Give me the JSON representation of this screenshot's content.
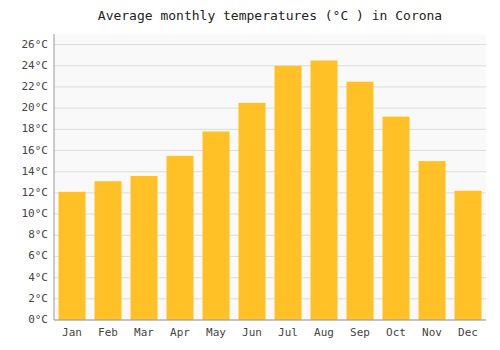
{
  "chart_data": {
    "type": "bar",
    "title": "Average monthly temperatures (°C ) in Corona",
    "categories": [
      "Jan",
      "Feb",
      "Mar",
      "Apr",
      "May",
      "Jun",
      "Jul",
      "Aug",
      "Sep",
      "Oct",
      "Nov",
      "Dec"
    ],
    "values": [
      12.1,
      13.1,
      13.6,
      15.5,
      17.8,
      20.5,
      24.0,
      24.5,
      22.5,
      19.2,
      15.0,
      12.2
    ],
    "color": "#FFC125",
    "ylim": [
      0,
      27
    ],
    "yticks": [
      {
        "value": 0,
        "label": "0°C"
      },
      {
        "value": 2,
        "label": "2°C"
      },
      {
        "value": 4,
        "label": "4°C"
      },
      {
        "value": 6,
        "label": "6°C"
      },
      {
        "value": 8,
        "label": "8°C"
      },
      {
        "value": 10,
        "label": "10°C"
      },
      {
        "value": 12,
        "label": "12°C"
      },
      {
        "value": 14,
        "label": "14°C"
      },
      {
        "value": 16,
        "label": "16°C"
      },
      {
        "value": 18,
        "label": "18°C"
      },
      {
        "value": 20,
        "label": "20°C"
      },
      {
        "value": 22,
        "label": "22°C"
      },
      {
        "value": 24,
        "label": "24°C"
      },
      {
        "value": 26,
        "label": "26°C"
      }
    ],
    "grid": true
  }
}
